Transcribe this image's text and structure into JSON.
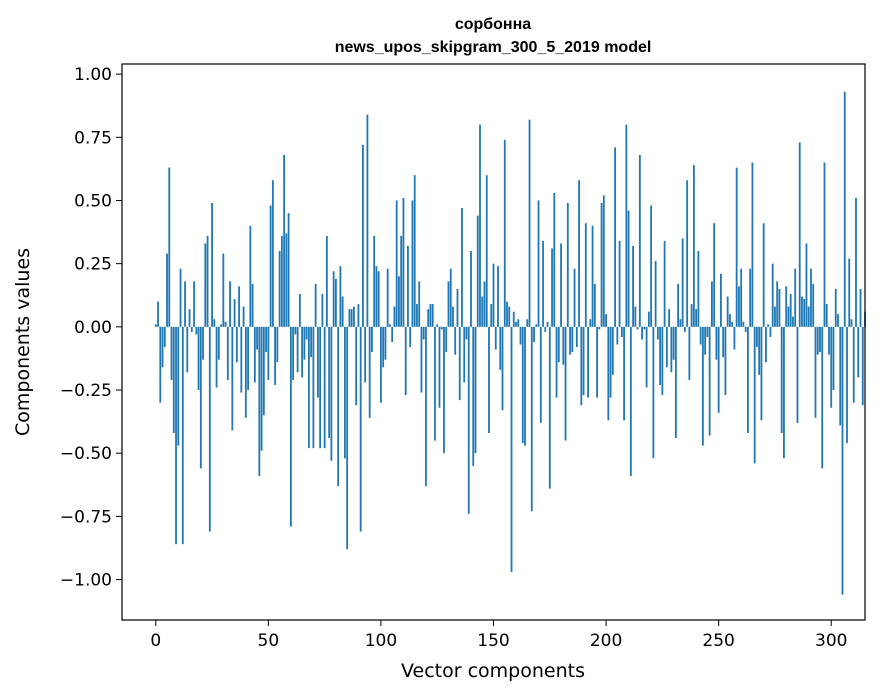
{
  "chart_data": {
    "type": "bar",
    "title": "сорбонна",
    "subtitle": "news_upos_skipgram_300_5_2019 model",
    "xlabel": "Vector components",
    "ylabel": "Components values",
    "xlim": [
      -15,
      315
    ],
    "ylim": [
      -1.16,
      1.04
    ],
    "xticks": [
      0,
      50,
      100,
      150,
      200,
      250,
      300
    ],
    "xtick_labels": [
      "0",
      "50",
      "100",
      "150",
      "200",
      "250",
      "300"
    ],
    "yticks": [
      1.0,
      0.75,
      0.5,
      0.25,
      0.0,
      -0.25,
      -0.5,
      -0.75,
      -1.0
    ],
    "ytick_labels": [
      "1.00",
      "0.75",
      "0.50",
      "0.25",
      "0.00",
      "−0.25",
      "−0.50",
      "−0.75",
      "−1.00"
    ],
    "grid": false,
    "bar_color": "#1f77b4",
    "series": [
      {
        "values": [
          0.01,
          0.1,
          -0.3,
          -0.16,
          -0.08,
          0.29,
          0.63,
          -0.21,
          -0.42,
          -0.86,
          -0.47,
          0.23,
          -0.86,
          0.18,
          -0.18,
          0.07,
          -0.02,
          0.18,
          -0.03,
          -0.25,
          -0.56,
          -0.13,
          0.33,
          0.36,
          -0.81,
          0.49,
          0.03,
          -0.24,
          -0.13,
          0.01,
          0.29,
          0.02,
          -0.21,
          0.18,
          -0.41,
          0.11,
          -0.14,
          0.16,
          -0.26,
          0.08,
          -0.36,
          -0.25,
          0.4,
          0.17,
          -0.22,
          -0.09,
          -0.59,
          -0.49,
          -0.35,
          -0.1,
          -0.21,
          0.48,
          0.58,
          -0.23,
          -0.14,
          0.3,
          0.36,
          0.68,
          0.37,
          0.45,
          -0.79,
          -0.21,
          -0.03,
          -0.18,
          0.13,
          -0.2,
          -0.13,
          -0.05,
          -0.48,
          -0.12,
          -0.48,
          0.17,
          -0.28,
          -0.48,
          0.13,
          -0.48,
          0.36,
          -0.44,
          -0.53,
          0.22,
          0.19,
          -0.63,
          0.24,
          0.12,
          -0.52,
          -0.88,
          0.07,
          0.07,
          0.08,
          -0.31,
          0.09,
          -0.81,
          0.72,
          -0.22,
          0.84,
          -0.36,
          -0.1,
          0.36,
          0.24,
          0.22,
          -0.3,
          -0.16,
          -0.13,
          0.23,
          0.01,
          -0.06,
          0.08,
          0.5,
          0.2,
          0.36,
          0.51,
          -0.27,
          0.32,
          -0.08,
          0.5,
          0.6,
          0.09,
          0.18,
          -0.26,
          -0.05,
          -0.63,
          0.07,
          0.09,
          0.09,
          -0.45,
          0.01,
          -0.32,
          -0.01,
          -0.5,
          -0.1,
          0.18,
          0.23,
          0.08,
          -0.11,
          0.15,
          -0.29,
          0.47,
          -0.22,
          -0.05,
          -0.74,
          0.3,
          -0.55,
          -0.5,
          0.44,
          0.8,
          0.12,
          0.18,
          0.6,
          -0.42,
          0.09,
          0.25,
          -0.09,
          0.24,
          -0.17,
          -0.33,
          0.74,
          0.1,
          0.08,
          -0.97,
          0.06,
          0.02,
          0.03,
          -0.07,
          -0.46,
          -0.47,
          0.03,
          0.82,
          -0.73,
          -0.06,
          0.01,
          0.5,
          -0.38,
          0.34,
          -0.02,
          0.02,
          -0.64,
          0.31,
          0.53,
          -0.28,
          -0.14,
          0.33,
          -0.15,
          -0.45,
          0.49,
          -0.11,
          -0.1,
          0.23,
          -0.08,
          0.58,
          -0.31,
          -0.27,
          0.41,
          -0.28,
          0.03,
          0.4,
          0.17,
          -0.28,
          -0.01,
          0.49,
          0.52,
          0.05,
          -0.37,
          -0.28,
          -0.19,
          0.71,
          -0.07,
          0.34,
          -0.04,
          -0.37,
          0.8,
          0.46,
          -0.59,
          0.32,
          0.08,
          -0.01,
          0.68,
          -0.05,
          -0.01,
          -0.24,
          0.06,
          0.48,
          -0.52,
          0.26,
          -0.05,
          -0.23,
          -0.27,
          0.34,
          -0.16,
          0.07,
          -0.18,
          -0.13,
          -0.44,
          0.17,
          0.03,
          0.35,
          -0.02,
          0.58,
          -0.21,
          0.09,
          0.64,
          0.07,
          0.3,
          -0.07,
          -0.47,
          -0.11,
          -0.04,
          -0.43,
          0.18,
          0.41,
          -0.13,
          -0.34,
          0.21,
          -0.12,
          -0.27,
          0.12,
          0.05,
          0.02,
          -0.09,
          0.63,
          0.16,
          0.23,
          0.02,
          -0.02,
          -0.42,
          0.23,
          0.65,
          -0.54,
          -0.08,
          -0.19,
          -0.37,
          0.41,
          -0.14,
          0.01,
          -0.04,
          0.25,
          0.08,
          0.18,
          0.15,
          -0.42,
          -0.52,
          0.16,
          0.08,
          0.13,
          0.04,
          0.23,
          -0.38,
          0.73,
          0.12,
          0.11,
          0.33,
          0.08,
          0.23,
          0.17,
          -0.36,
          -0.11,
          -0.1,
          -0.56,
          0.65,
          0.09,
          -0.11,
          -0.32,
          -0.25,
          0.15,
          0.05,
          -0.39,
          -1.06,
          0.93,
          -0.46,
          0.27,
          0.03,
          -0.3,
          0.51,
          -0.2,
          0.15,
          -0.31,
          0.06
        ]
      }
    ]
  }
}
